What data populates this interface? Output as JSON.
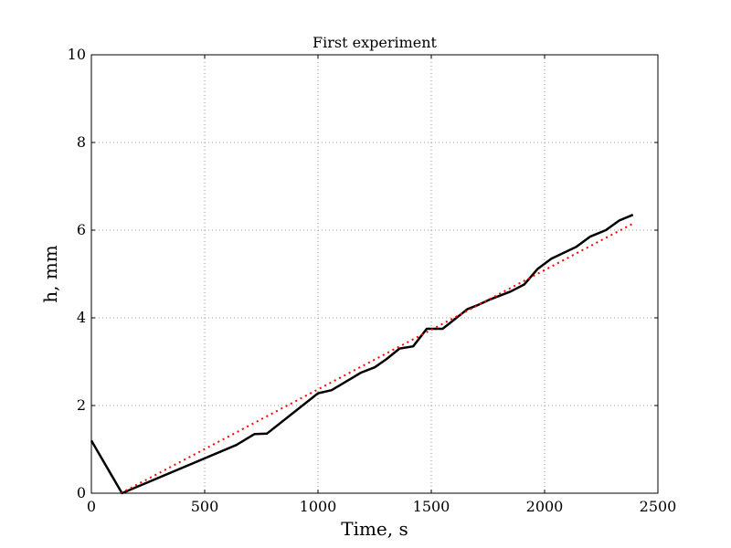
{
  "chart_data": {
    "type": "line",
    "title": "First experiment",
    "xlabel": "Time, s",
    "ylabel": "h, mm",
    "xlim": [
      0,
      2500
    ],
    "ylim": [
      0,
      10
    ],
    "xticks": [
      0,
      500,
      1000,
      1500,
      2000,
      2500
    ],
    "yticks": [
      0,
      2,
      4,
      6,
      8,
      10
    ],
    "xtick_labels": [
      "0",
      "500",
      "1000",
      "1500",
      "2000",
      "2500"
    ],
    "ytick_labels": [
      "0",
      "2",
      "4",
      "6",
      "8",
      "10"
    ],
    "grid": true,
    "series": [
      {
        "color": "#000000",
        "style": "solid",
        "x": [
          0,
          135,
          640,
          720,
          775,
          1000,
          1060,
          1190,
          1250,
          1300,
          1360,
          1420,
          1480,
          1550,
          1660,
          1700,
          1760,
          1850,
          1910,
          1970,
          2030,
          2140,
          2200,
          2270,
          2330,
          2390
        ],
        "y": [
          1.2,
          0.0,
          1.1,
          1.35,
          1.36,
          2.28,
          2.35,
          2.75,
          2.87,
          3.05,
          3.3,
          3.35,
          3.75,
          3.75,
          4.2,
          4.28,
          4.42,
          4.6,
          4.76,
          5.12,
          5.35,
          5.62,
          5.85,
          6.0,
          6.22,
          6.35
        ]
      },
      {
        "color": "#ff0000",
        "style": "dotted",
        "x": [
          130,
          2390
        ],
        "y": [
          0.0,
          6.15
        ]
      }
    ]
  }
}
